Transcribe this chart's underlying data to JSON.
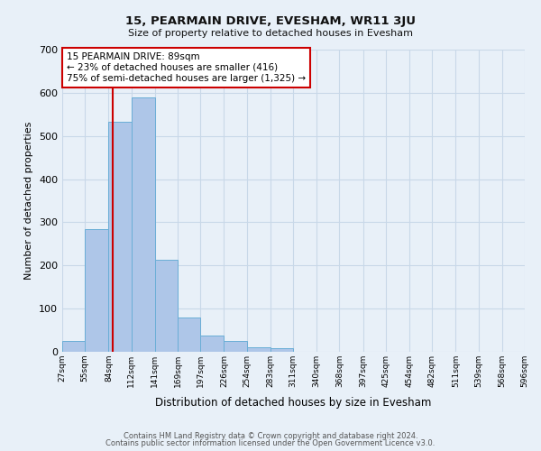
{
  "title": "15, PEARMAIN DRIVE, EVESHAM, WR11 3JU",
  "subtitle": "Size of property relative to detached houses in Evesham",
  "xlabel": "Distribution of detached houses by size in Evesham",
  "ylabel": "Number of detached properties",
  "bar_heights": [
    25,
    285,
    533,
    590,
    213,
    80,
    37,
    25,
    10,
    8,
    0,
    0,
    0,
    0,
    0,
    0,
    0,
    0,
    0,
    0
  ],
  "bin_edges": [
    27,
    55,
    84,
    112,
    141,
    169,
    197,
    226,
    254,
    283,
    311,
    340,
    368,
    397,
    425,
    454,
    482,
    511,
    539,
    568,
    596
  ],
  "tick_labels": [
    "27sqm",
    "55sqm",
    "84sqm",
    "112sqm",
    "141sqm",
    "169sqm",
    "197sqm",
    "226sqm",
    "254sqm",
    "283sqm",
    "311sqm",
    "340sqm",
    "368sqm",
    "397sqm",
    "425sqm",
    "454sqm",
    "482sqm",
    "511sqm",
    "539sqm",
    "568sqm",
    "596sqm"
  ],
  "bar_color": "#aec6e8",
  "bar_edge_color": "#6aaed6",
  "grid_color": "#c8d8e8",
  "background_color": "#e8f0f8",
  "vline_x": 89,
  "vline_color": "#cc0000",
  "annotation_title": "15 PEARMAIN DRIVE: 89sqm",
  "annotation_line1": "← 23% of detached houses are smaller (416)",
  "annotation_line2": "75% of semi-detached houses are larger (1,325) →",
  "annotation_box_color": "#ffffff",
  "annotation_box_edge": "#cc0000",
  "ylim": [
    0,
    700
  ],
  "yticks": [
    0,
    100,
    200,
    300,
    400,
    500,
    600,
    700
  ],
  "footer1": "Contains HM Land Registry data © Crown copyright and database right 2024.",
  "footer2": "Contains public sector information licensed under the Open Government Licence v3.0."
}
